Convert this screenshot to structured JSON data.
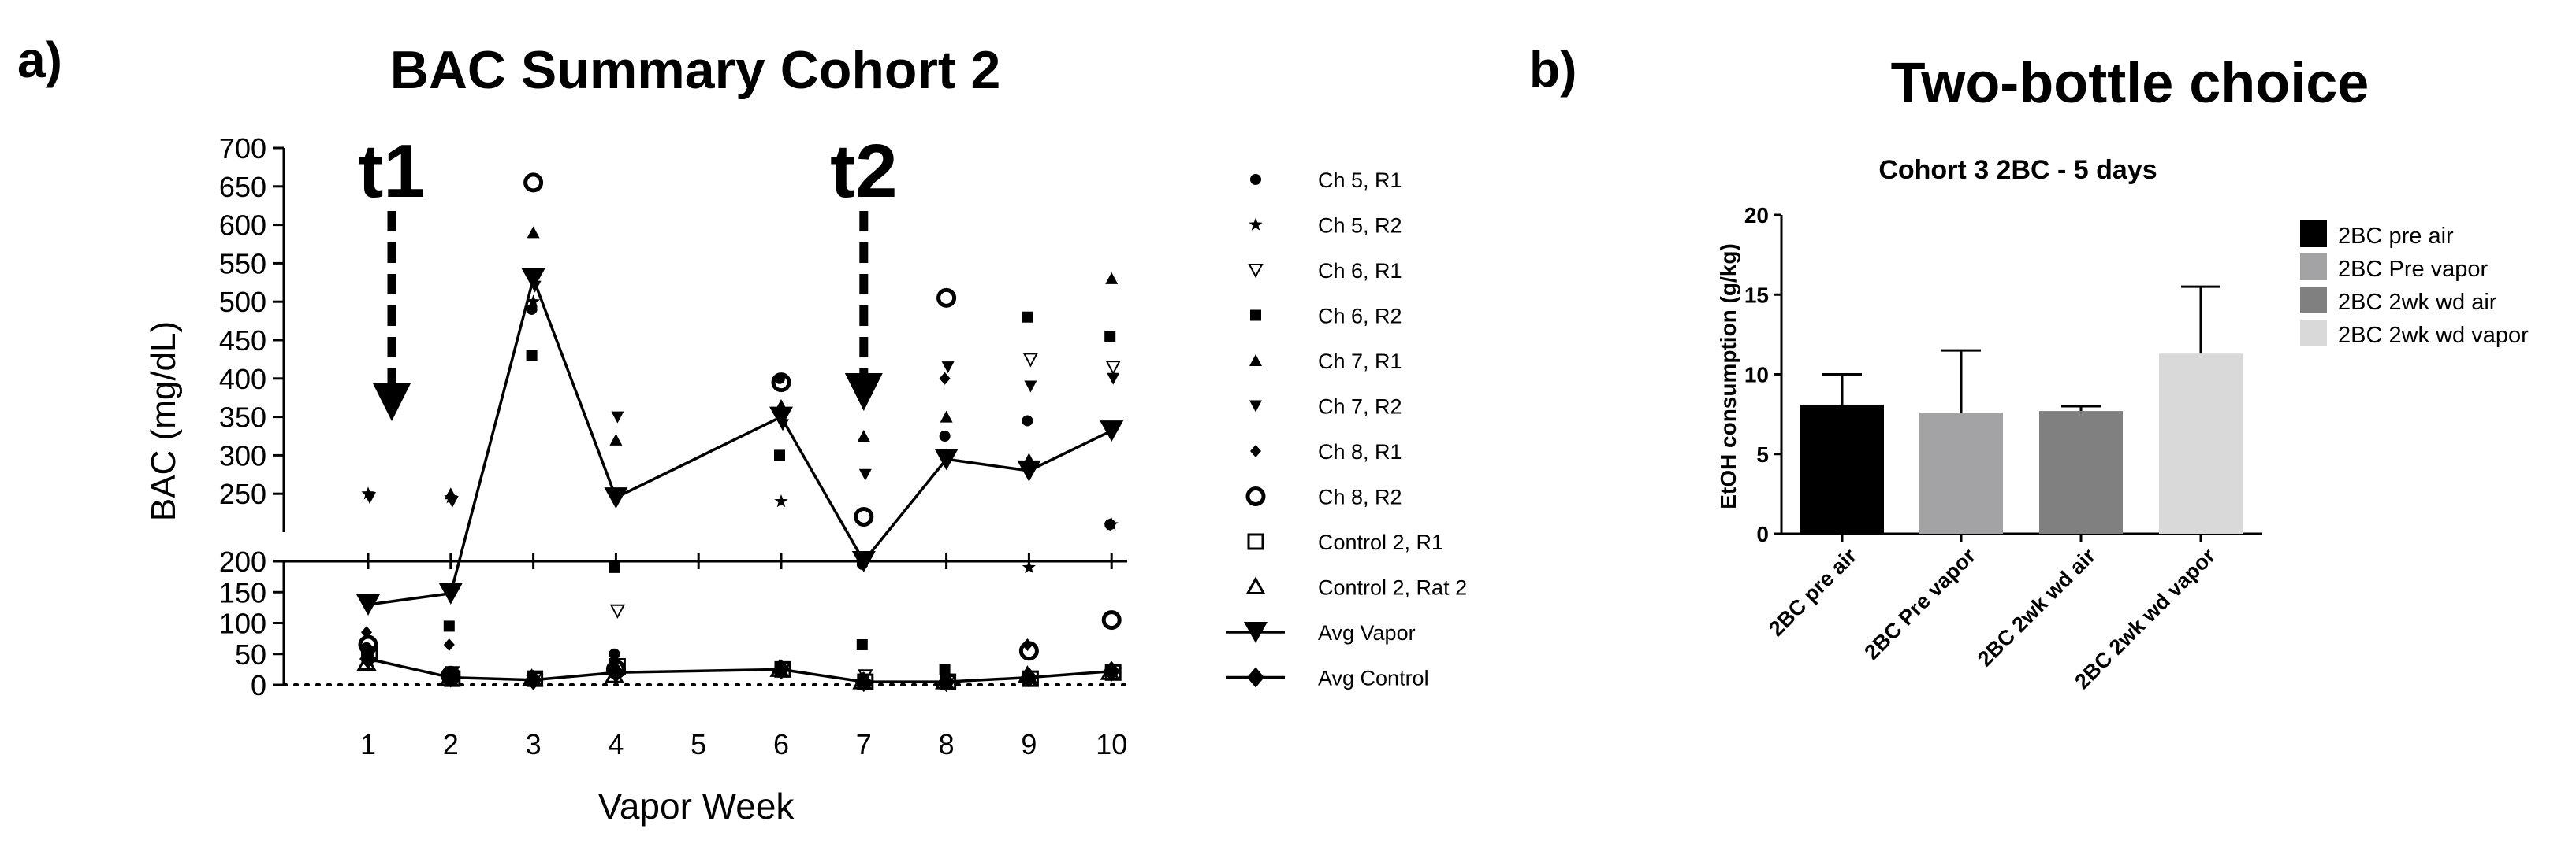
{
  "chart_data": [
    {
      "panel_label": "a)",
      "type": "scatter",
      "title": "BAC Summary Cohort 2",
      "xlabel": "Vapor Week",
      "ylabel": "BAC (mg/dL)",
      "xlim": [
        0,
        10.3
      ],
      "x_ticks": [
        1,
        2,
        3,
        4,
        5,
        6,
        7,
        8,
        9,
        10
      ],
      "y_ticks": [
        0,
        50,
        100,
        150,
        200,
        250,
        300,
        350,
        400,
        450,
        500,
        550,
        600,
        650,
        700
      ],
      "ylim": [
        0,
        700
      ],
      "y_axis_break": 200,
      "reference_line_y": 0,
      "grid": false,
      "legend_position": "right",
      "annotations": [
        {
          "text": "t1",
          "x": 1
        },
        {
          "text": "t2",
          "x": 7
        }
      ],
      "series": [
        {
          "name": "Ch 5, R1",
          "marker": "circle-filled-small",
          "points": [
            [
              1,
              60
            ],
            [
              2,
              155
            ],
            [
              3,
              490
            ],
            [
              4,
              50
            ],
            [
              6,
              400
            ],
            [
              7,
              195
            ],
            [
              8,
              325
            ],
            [
              9,
              345
            ],
            [
              10,
              210
            ]
          ]
        },
        {
          "name": "Ch 5, R2",
          "marker": "star",
          "points": [
            [
              1,
              250
            ],
            [
              2,
              245
            ],
            [
              3,
              500
            ],
            [
              4,
              250
            ],
            [
              6,
              240
            ],
            [
              7,
              200
            ],
            [
              8,
              300
            ],
            [
              9,
              190
            ],
            [
              10,
              210
            ]
          ]
        },
        {
          "name": "Ch 6, R1",
          "marker": "triangle-down-open-small",
          "points": [
            [
              1,
              50
            ],
            [
              2,
              20
            ],
            [
              3,
              10
            ],
            [
              4,
              120
            ],
            [
              6,
              25
            ],
            [
              7,
              15
            ],
            [
              8,
              5
            ],
            [
              9,
              425
            ],
            [
              10,
              415
            ]
          ]
        },
        {
          "name": "Ch 6, R2",
          "marker": "square-filled-small",
          "points": [
            [
              1,
              55
            ],
            [
              2,
              95
            ],
            [
              3,
              430
            ],
            [
              4,
              190
            ],
            [
              6,
              300
            ],
            [
              7,
              65
            ],
            [
              8,
              25
            ],
            [
              9,
              480
            ],
            [
              10,
              455
            ]
          ]
        },
        {
          "name": "Ch 7, R1",
          "marker": "triangle-up-filled-small",
          "points": [
            [
              1,
              45
            ],
            [
              2,
              250
            ],
            [
              3,
              590
            ],
            [
              4,
              320
            ],
            [
              6,
              365
            ],
            [
              7,
              325
            ],
            [
              8,
              350
            ],
            [
              9,
              295
            ],
            [
              10,
              530
            ]
          ]
        },
        {
          "name": "Ch 7, R2",
          "marker": "triangle-down-filled-small",
          "points": [
            [
              1,
              245
            ],
            [
              2,
              240
            ],
            [
              3,
              520
            ],
            [
              4,
              350
            ],
            [
              6,
              340
            ],
            [
              7,
              275
            ],
            [
              8,
              415
            ],
            [
              9,
              390
            ],
            [
              10,
              400
            ]
          ]
        },
        {
          "name": "Ch 8, R1",
          "marker": "diamond-filled-small",
          "points": [
            [
              1,
              85
            ],
            [
              2,
              65
            ],
            [
              3,
              15
            ],
            [
              4,
              30
            ],
            [
              6,
              25
            ],
            [
              7,
              200
            ],
            [
              8,
              400
            ],
            [
              9,
              65
            ],
            [
              10,
              210
            ]
          ]
        },
        {
          "name": "Ch 8, R2",
          "marker": "circle-open",
          "points": [
            [
              1,
              65
            ],
            [
              2,
              15
            ],
            [
              3,
              655
            ],
            [
              4,
              25
            ],
            [
              6,
              395
            ],
            [
              7,
              220
            ],
            [
              8,
              505
            ],
            [
              9,
              55
            ],
            [
              10,
              105
            ]
          ]
        },
        {
          "name": "Control 2, R1",
          "marker": "square-open",
          "points": [
            [
              1,
              50
            ],
            [
              2,
              10
            ],
            [
              3,
              10
            ],
            [
              4,
              30
            ],
            [
              6,
              25
            ],
            [
              7,
              5
            ],
            [
              8,
              5
            ],
            [
              9,
              10
            ],
            [
              10,
              20
            ]
          ]
        },
        {
          "name": "Control 2, Rat 2",
          "marker": "triangle-up-open",
          "points": [
            [
              1,
              35
            ],
            [
              2,
              10
            ],
            [
              3,
              10
            ],
            [
              4,
              15
            ],
            [
              6,
              25
            ],
            [
              7,
              5
            ],
            [
              8,
              5
            ],
            [
              9,
              15
            ],
            [
              10,
              20
            ]
          ]
        },
        {
          "name": "Avg Vapor",
          "marker": "triangle-down-filled-large",
          "line": true,
          "points": [
            [
              1,
              130
            ],
            [
              2,
              148
            ],
            [
              3,
              530
            ],
            [
              4,
              245
            ],
            [
              6,
              350
            ],
            [
              7,
              200
            ],
            [
              8,
              295
            ],
            [
              9,
              280
            ],
            [
              10,
              332
            ]
          ]
        },
        {
          "name": "Avg Control",
          "marker": "diamond-filled-large",
          "line": true,
          "points": [
            [
              1,
              42
            ],
            [
              2,
              12
            ],
            [
              3,
              8
            ],
            [
              4,
              20
            ],
            [
              6,
              25
            ],
            [
              7,
              5
            ],
            [
              8,
              5
            ],
            [
              9,
              12
            ],
            [
              10,
              22
            ]
          ]
        }
      ]
    },
    {
      "panel_label": "b)",
      "panel_title": "Two-bottle choice",
      "type": "bar",
      "title": "Cohort 3 2BC - 5 days",
      "xlabel": "",
      "ylabel": "EtOH consumption (g/kg)",
      "ylim": [
        0,
        20
      ],
      "y_ticks": [
        0,
        5,
        10,
        15,
        20
      ],
      "grid": false,
      "legend_position": "right",
      "categories": [
        "2BC pre air",
        "2BC Pre vapor",
        "2BC 2wk wd air",
        "2BC 2wk wd vapor"
      ],
      "values": [
        8.1,
        7.6,
        7.7,
        11.3
      ],
      "error_upper": [
        1.9,
        3.9,
        0.3,
        4.2
      ],
      "legend": [
        "2BC pre air",
        "2BC Pre vapor",
        "2BC 2wk wd air",
        "2BC 2wk wd vapor"
      ],
      "colors": [
        "#000000",
        "#a3a3a6",
        "#808080",
        "#d9d9d9"
      ]
    }
  ]
}
